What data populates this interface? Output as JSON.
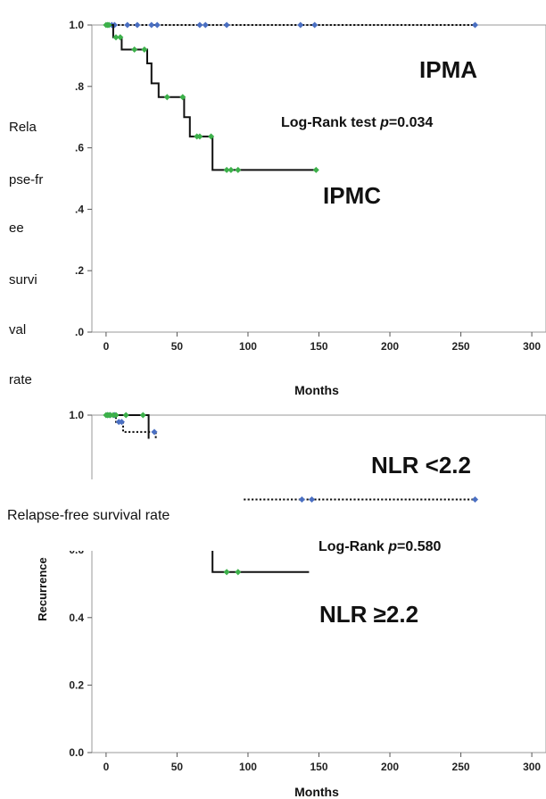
{
  "chart_data": [
    {
      "type": "line",
      "subtype": "kaplan-meier",
      "xlabel": "Months",
      "ylabel_lines": [
        "Rela",
        "pse-fr",
        "ee",
        "survi",
        "val",
        "rate"
      ],
      "x_ticks": [
        "0",
        "50",
        "100",
        "150",
        "200",
        "250",
        "300"
      ],
      "y_ticks": [
        "1.0",
        ".8",
        ".6",
        ".4",
        ".2",
        ".0"
      ],
      "xlim": [
        -10,
        310
      ],
      "ylim": [
        0,
        1
      ],
      "annotations": [
        "IPMA",
        "IPMC"
      ],
      "test_label": "Log-Rank test ",
      "test_p": "p",
      "test_value": "=0.034",
      "series": [
        {
          "name": "IPMA",
          "style": "dotted",
          "color": "#111111",
          "censor_color": "#4a6fc2",
          "steps": [
            [
              0,
              1.0
            ],
            [
              260,
              1.0
            ]
          ],
          "censored": [
            [
              2,
              1.0
            ],
            [
              4,
              1.0
            ],
            [
              6,
              1.0
            ],
            [
              15,
              1.0
            ],
            [
              22,
              1.0
            ],
            [
              32,
              1.0
            ],
            [
              36,
              1.0
            ],
            [
              66,
              1.0
            ],
            [
              70,
              1.0
            ],
            [
              85,
              1.0
            ],
            [
              137,
              1.0
            ],
            [
              147,
              1.0
            ],
            [
              260,
              1.0
            ]
          ]
        },
        {
          "name": "IPMC",
          "style": "solid",
          "color": "#111111",
          "censor_color": "#3cb04a",
          "steps": [
            [
              0,
              1.0
            ],
            [
              5,
              1.0
            ],
            [
              5,
              0.96
            ],
            [
              11,
              0.96
            ],
            [
              11,
              0.92
            ],
            [
              29,
              0.92
            ],
            [
              29,
              0.875
            ],
            [
              32,
              0.875
            ],
            [
              32,
              0.81
            ],
            [
              37,
              0.81
            ],
            [
              37,
              0.765
            ],
            [
              55,
              0.765
            ],
            [
              55,
              0.7
            ],
            [
              59,
              0.7
            ],
            [
              59,
              0.637
            ],
            [
              75,
              0.637
            ],
            [
              75,
              0.528
            ],
            [
              148,
              0.528
            ]
          ],
          "censored": [
            [
              0,
              1.0
            ],
            [
              1,
              1.0
            ],
            [
              2,
              1.0
            ],
            [
              7,
              0.96
            ],
            [
              10,
              0.96
            ],
            [
              20,
              0.92
            ],
            [
              27,
              0.92
            ],
            [
              43,
              0.765
            ],
            [
              54,
              0.765
            ],
            [
              64,
              0.637
            ],
            [
              66,
              0.637
            ],
            [
              74,
              0.637
            ],
            [
              85,
              0.528
            ],
            [
              88,
              0.528
            ],
            [
              93,
              0.528
            ],
            [
              148,
              0.528
            ]
          ]
        }
      ]
    },
    {
      "type": "line",
      "subtype": "kaplan-meier",
      "xlabel": "Months",
      "ylabel": "Recurrence",
      "overlay_label": "Relapse-free survival rate",
      "x_ticks": [
        "0",
        "50",
        "100",
        "150",
        "200",
        "250",
        "300"
      ],
      "y_ticks": [
        "1.0",
        "0.6",
        "0.4",
        "0.2",
        "0.0"
      ],
      "xlim": [
        -10,
        310
      ],
      "ylim": [
        0,
        1
      ],
      "annotations": [
        "NLR <2.2",
        "NLR ≥2.2"
      ],
      "test_label": "Log-Rank ",
      "test_p": "p",
      "test_value": "=0.580",
      "series": [
        {
          "name": "NLR <2.2",
          "style": "dotted",
          "color": "#111111",
          "censor_color": "#4a6fc2",
          "steps": [
            [
              0,
              1.0
            ],
            [
              7,
              1.0
            ],
            [
              7,
              0.98
            ],
            [
              12,
              0.98
            ],
            [
              12,
              0.95
            ],
            [
              35,
              0.95
            ],
            [
              35,
              0.93
            ]
          ],
          "segments": [
            [
              [
                97,
                0.75
              ],
              [
                260,
                0.75
              ]
            ]
          ],
          "censored": [
            [
              1,
              1.0
            ],
            [
              3,
              1.0
            ],
            [
              6,
              1.0
            ],
            [
              9,
              0.98
            ],
            [
              11,
              0.98
            ],
            [
              34,
              0.95
            ],
            [
              138,
              0.75
            ],
            [
              145,
              0.75
            ],
            [
              260,
              0.75
            ]
          ]
        },
        {
          "name": "NLR ≥2.2",
          "style": "solid",
          "color": "#111111",
          "censor_color": "#3cb04a",
          "steps": [
            [
              0,
              1.0
            ],
            [
              30,
              1.0
            ],
            [
              30,
              0.93
            ]
          ],
          "segments": [
            [
              [
                75,
                0.61
              ],
              [
                75,
                0.535
              ],
              [
                143,
                0.535
              ]
            ]
          ],
          "censored": [
            [
              0,
              1.0
            ],
            [
              1,
              1.0
            ],
            [
              2,
              1.0
            ],
            [
              3,
              1.0
            ],
            [
              5,
              1.0
            ],
            [
              7,
              1.0
            ],
            [
              14,
              1.0
            ],
            [
              26,
              1.0
            ],
            [
              85,
              0.535
            ],
            [
              93,
              0.535
            ]
          ]
        }
      ]
    }
  ]
}
